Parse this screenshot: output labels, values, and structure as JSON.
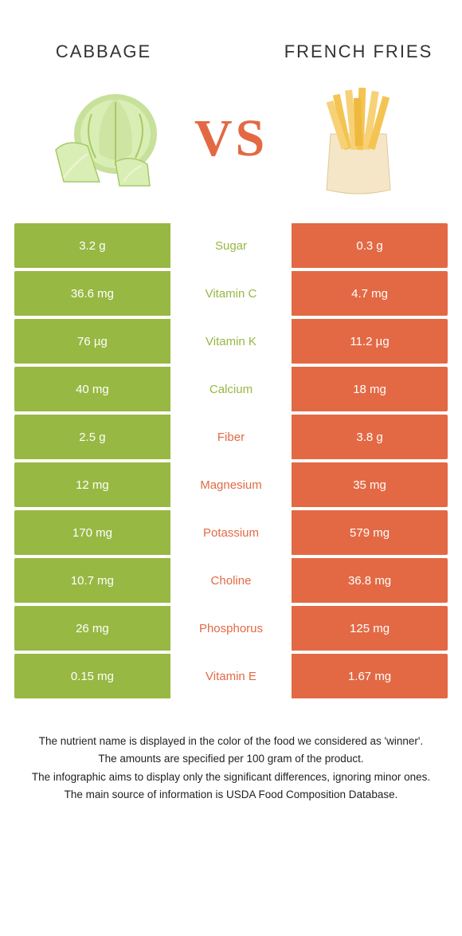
{
  "colors": {
    "left": "#97b842",
    "right": "#e36944",
    "vs": "#e36944"
  },
  "foods": {
    "left": {
      "name": "Cabbage"
    },
    "right": {
      "name": "French fries"
    }
  },
  "vs_label": "VS",
  "rows": [
    {
      "left": "3.2 g",
      "label": "Sugar",
      "right": "0.3 g",
      "winner": "left"
    },
    {
      "left": "36.6 mg",
      "label": "Vitamin C",
      "right": "4.7 mg",
      "winner": "left"
    },
    {
      "left": "76 µg",
      "label": "Vitamin K",
      "right": "11.2 µg",
      "winner": "left"
    },
    {
      "left": "40 mg",
      "label": "Calcium",
      "right": "18 mg",
      "winner": "left"
    },
    {
      "left": "2.5 g",
      "label": "Fiber",
      "right": "3.8 g",
      "winner": "right"
    },
    {
      "left": "12 mg",
      "label": "Magnesium",
      "right": "35 mg",
      "winner": "right"
    },
    {
      "left": "170 mg",
      "label": "Potassium",
      "right": "579 mg",
      "winner": "right"
    },
    {
      "left": "10.7 mg",
      "label": "Choline",
      "right": "36.8 mg",
      "winner": "right"
    },
    {
      "left": "26 mg",
      "label": "Phosphorus",
      "right": "125 mg",
      "winner": "right"
    },
    {
      "left": "0.15 mg",
      "label": "Vitamin E",
      "right": "1.67 mg",
      "winner": "right"
    }
  ],
  "footer": [
    "The nutrient name is displayed in the color of the food we considered as 'winner'.",
    "The amounts are specified per 100 gram of the product.",
    "The infographic aims to display only the significant differences, ignoring minor ones.",
    "The main source of information is USDA Food Composition Database."
  ]
}
